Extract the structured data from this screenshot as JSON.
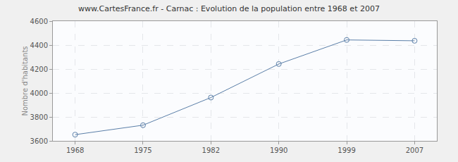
{
  "chart_data": {
    "type": "line",
    "title": "www.CartesFrance.fr - Carnac : Evolution de la population entre 1968 et 2007",
    "y_label": "Nombre d'habitants",
    "categories": [
      "1968",
      "1975",
      "1982",
      "1990",
      "1999",
      "2007"
    ],
    "values": [
      3652,
      3731,
      3962,
      4242,
      4443,
      4436
    ],
    "color": "#5b7fa8",
    "marker": "circle-open",
    "line_style": "solid",
    "ylim": [
      3600,
      4600
    ],
    "yticks": [
      3600,
      3800,
      4000,
      4200,
      4400,
      4600
    ],
    "grid": true
  }
}
